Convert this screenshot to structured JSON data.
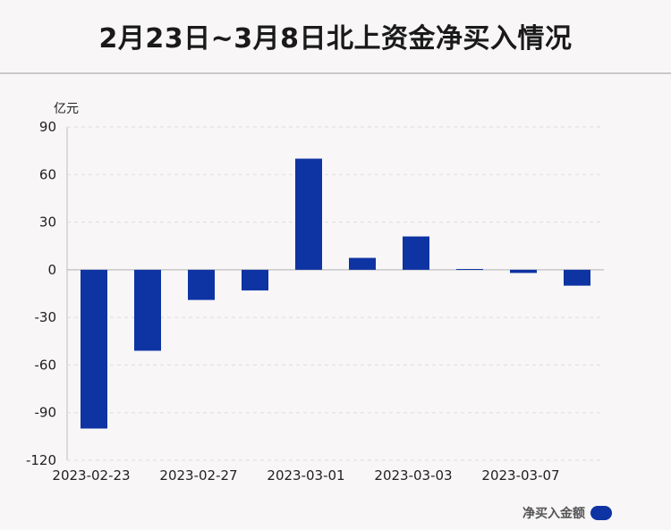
{
  "title": "2月23日~3月8日北上资金净买入情况",
  "unit_label": "亿元",
  "legend_label": "净买入金额",
  "colors": {
    "bar": "#0e33a3",
    "grid": "#dddddd",
    "axis": "#bdbdbd",
    "text": "#222222"
  },
  "chart_data": {
    "type": "bar",
    "title": "2月23日~3月8日北上资金净买入情况",
    "ylabel": "亿元",
    "xlabel": "",
    "ylim": [
      -120,
      90
    ],
    "yticks": [
      90,
      60,
      30,
      0,
      -30,
      -60,
      -90,
      -120
    ],
    "categories": [
      "2023-02-23",
      "2023-02-24",
      "2023-02-27",
      "2023-02-28",
      "2023-03-01",
      "2023-03-02",
      "2023-03-03",
      "2023-03-06",
      "2023-03-07",
      "2023-03-08"
    ],
    "xtick_labels": [
      "2023-02-23",
      "2023-02-27",
      "2023-03-01",
      "2023-03-03",
      "2023-03-07"
    ],
    "series": [
      {
        "name": "净买入金额",
        "values": [
          -100,
          -51,
          -19,
          -13,
          70,
          7.5,
          21,
          0.5,
          -2,
          -10
        ]
      }
    ],
    "grid": true,
    "legend_position": "bottom-right"
  }
}
